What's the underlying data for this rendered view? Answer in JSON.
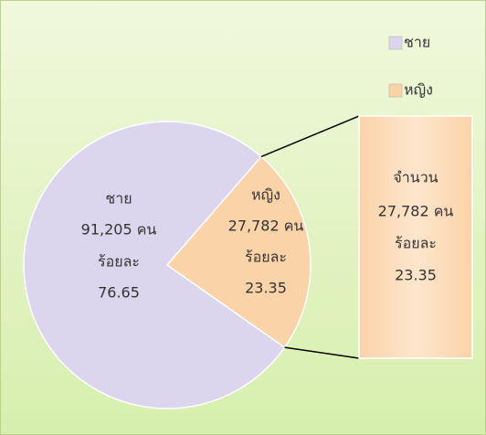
{
  "chart_data": {
    "type": "pie",
    "categories": [
      "ชาย",
      "หญิง"
    ],
    "values": [
      76.65,
      23.35
    ],
    "count_labels": [
      "91,205 คน",
      "27,782 คน"
    ],
    "percent_word": "ร้อยละ",
    "breakout_title": "จำนวน",
    "colors": [
      "#dcd5ee",
      "#fbd3a8"
    ],
    "legend": "top-right"
  }
}
